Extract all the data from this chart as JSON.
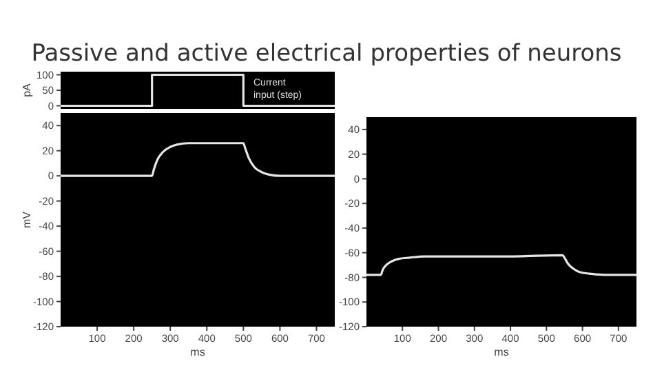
{
  "chart_data": [
    {
      "type": "step",
      "title": "Passive and active electrical properties of neurons",
      "ylabel": "pA",
      "x": [
        0,
        250,
        250,
        500,
        500,
        750
      ],
      "series": [
        {
          "color": "#e6e6e6",
          "values": [
            0,
            0,
            100,
            100,
            0,
            0
          ]
        }
      ],
      "xlim": [
        0,
        750
      ],
      "ylim": [
        -10,
        110
      ],
      "yticks": [
        0,
        50,
        100
      ],
      "tick_labels": "y",
      "annotations": [
        "Current input (step)"
      ]
    },
    {
      "type": "line",
      "xlabel": "ms",
      "ylabel": "mV",
      "x": [
        0,
        250,
        255,
        265,
        280,
        300,
        320,
        350,
        400,
        500,
        505,
        515,
        530,
        550,
        570,
        600,
        650,
        750
      ],
      "series": [
        {
          "color": "#e6e6e6",
          "values": [
            0,
            0,
            5,
            13,
            19,
            23,
            25,
            26,
            26,
            26,
            22,
            14,
            7,
            3,
            1,
            0,
            0,
            0
          ]
        }
      ],
      "xlim": [
        0,
        750
      ],
      "ylim": [
        -120,
        50
      ],
      "xticks": [
        100,
        200,
        300,
        400,
        500,
        600,
        700
      ],
      "yticks": [
        -120,
        -100,
        -80,
        -60,
        -40,
        -20,
        0,
        20,
        40
      ]
    },
    {
      "type": "line",
      "xlabel": "ms",
      "x": [
        0,
        40,
        45,
        55,
        70,
        90,
        120,
        160,
        200,
        300,
        400,
        545,
        550,
        560,
        575,
        595,
        620,
        660,
        750
      ],
      "series": [
        {
          "color": "#e6e6e6",
          "values": [
            -78,
            -78,
            -74,
            -70,
            -67,
            -65,
            -64,
            -63,
            -63,
            -63,
            -63,
            -62,
            -64,
            -69,
            -73,
            -76,
            -77,
            -78,
            -78
          ]
        }
      ],
      "xlim": [
        0,
        750
      ],
      "ylim": [
        -120,
        50
      ],
      "xticks": [
        100,
        200,
        300,
        400,
        500,
        600,
        700
      ],
      "yticks": [
        -120,
        -100,
        -80,
        -60,
        -40,
        -20,
        0,
        20,
        40
      ]
    }
  ]
}
